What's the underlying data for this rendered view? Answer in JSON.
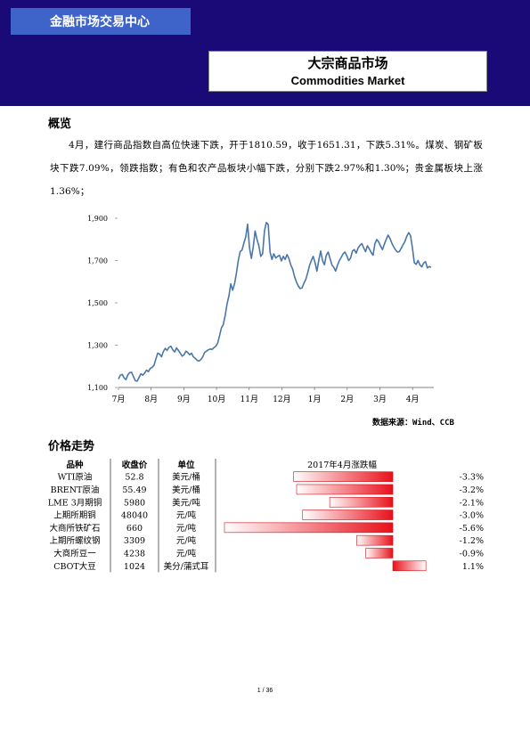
{
  "header": {
    "org": "金融市场交易中心",
    "title_cn": "大宗商品市场",
    "title_en": "Commodities Market"
  },
  "overview": {
    "heading": "概览",
    "paragraph": "4月，建行商品指数自高位快速下跌，开于1810.59，收于1651.31，下跌5.31%。煤炭、钢矿板块下跌7.09%，领跌指数；有色和农产品板块小幅下跌，分别下跌2.97%和1.30%；贵金属板块上涨1.36%；"
  },
  "chart_data": {
    "type": "line",
    "y_ticks": [
      "1,100",
      "1,300",
      "1,500",
      "1,700",
      "1,900"
    ],
    "ylim": [
      1100,
      1900
    ],
    "x_ticks": [
      "7月",
      "8月",
      "9月",
      "10月",
      "11月",
      "12月",
      "1月",
      "2月",
      "3月",
      "4月"
    ],
    "series": [
      {
        "values": [
          1140,
          1158,
          1162,
          1145,
          1137,
          1160,
          1170,
          1172,
          1152,
          1132,
          1130,
          1148,
          1165,
          1158,
          1168,
          1182,
          1175,
          1190,
          1195,
          1205,
          1235,
          1262,
          1258,
          1245,
          1270,
          1285,
          1275,
          1290,
          1295,
          1278,
          1268,
          1287,
          1275,
          1262,
          1248,
          1255,
          1272,
          1265,
          1255,
          1262,
          1245,
          1238,
          1228,
          1225,
          1232,
          1245,
          1265,
          1272,
          1278,
          1282,
          1280,
          1288,
          1295,
          1310,
          1345,
          1382,
          1398,
          1440,
          1495,
          1533,
          1590,
          1560,
          1590,
          1640,
          1700,
          1742,
          1750,
          1782,
          1812,
          1872,
          1760,
          1710,
          1765,
          1840,
          1800,
          1770,
          1720,
          1732,
          1840,
          1880,
          1870,
          1740,
          1705,
          1732,
          1712,
          1720,
          1725,
          1698,
          1720,
          1705,
          1728,
          1710,
          1680,
          1660,
          1625,
          1600,
          1580,
          1568,
          1570,
          1592,
          1610,
          1640,
          1675,
          1700,
          1720,
          1690,
          1650,
          1702,
          1745,
          1700,
          1680,
          1725,
          1740,
          1710,
          1680,
          1668,
          1650,
          1678,
          1700,
          1715,
          1732,
          1740,
          1722,
          1700,
          1712,
          1745,
          1752,
          1735,
          1760,
          1772,
          1780,
          1760,
          1742,
          1770,
          1755,
          1738,
          1725,
          1780,
          1800,
          1788,
          1768,
          1752,
          1778,
          1800,
          1820,
          1805,
          1782,
          1765,
          1750,
          1740,
          1742,
          1758,
          1775,
          1790,
          1815,
          1832,
          1818,
          1760,
          1690,
          1682,
          1700,
          1680,
          1670,
          1688,
          1695,
          1665,
          1672,
          1668
        ]
      }
    ]
  },
  "chart_source": "数据来源：Wind、CCB",
  "prices": {
    "heading": "价格走势",
    "col_headers": [
      "品种",
      "收盘价",
      "单位"
    ],
    "change_header": "2017年4月涨跌幅",
    "rows": [
      {
        "name": "WTI原油",
        "close": "52.8",
        "unit": "美元/桶",
        "change": -3.3,
        "change_label": "-3.3%"
      },
      {
        "name": "BRENT原油",
        "close": "55.49",
        "unit": "美元/桶",
        "change": -3.2,
        "change_label": "-3.2%"
      },
      {
        "name": "LME 3月期铜",
        "close": "5980",
        "unit": "美元/吨",
        "change": -2.1,
        "change_label": "-2.1%"
      },
      {
        "name": "上期所期铜",
        "close": "48040",
        "unit": "元/吨",
        "change": -3.0,
        "change_label": "-3.0%"
      },
      {
        "name": "大商所铁矿石",
        "close": "660",
        "unit": "元/吨",
        "change": -5.6,
        "change_label": "-5.6%"
      },
      {
        "name": "上期所螺纹钢",
        "close": "3309",
        "unit": "元/吨",
        "change": -1.2,
        "change_label": "-1.2%"
      },
      {
        "name": "大商所豆一",
        "close": "4238",
        "unit": "元/吨",
        "change": -0.9,
        "change_label": "-0.9%"
      },
      {
        "name": "CBOT大豆",
        "close": "1024",
        "unit": "美分/蒲式耳",
        "change": 1.1,
        "change_label": "1.1%"
      }
    ]
  },
  "footer": {
    "page": "1 / 36"
  },
  "colors": {
    "header_bg": "#1a0a78",
    "org_bar": "#3e63c9",
    "line": "#4a77a8",
    "bar_red": "#e8101a"
  }
}
